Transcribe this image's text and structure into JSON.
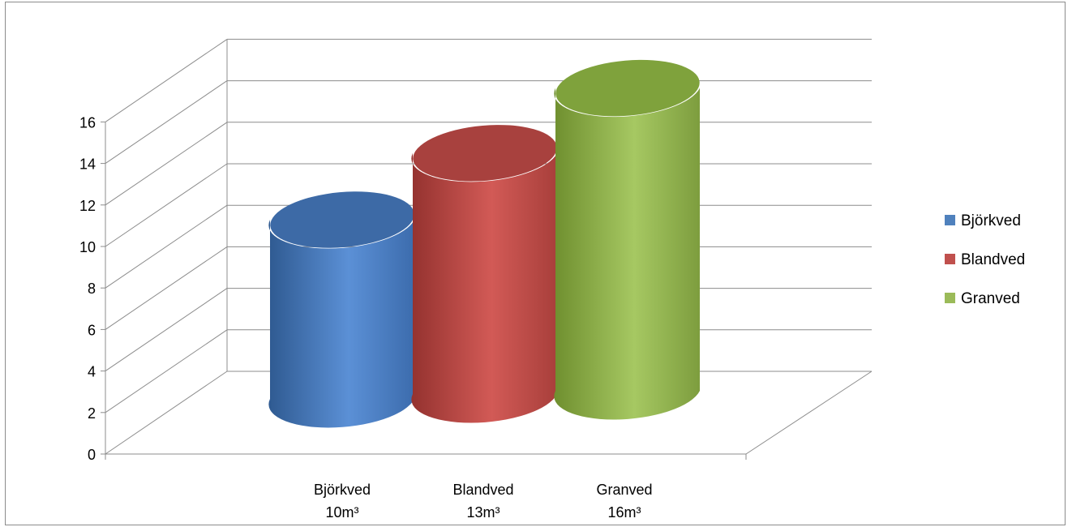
{
  "chart_data": {
    "type": "bar",
    "style": "3d-cylinder",
    "categories": [
      {
        "line1": "Björkved",
        "line2": "10m³"
      },
      {
        "line1": "Blandved",
        "line2": "13m³"
      },
      {
        "line1": "Granved",
        "line2": "16m³"
      }
    ],
    "series": [
      {
        "name": "Björkved",
        "values": [
          10,
          null,
          null
        ],
        "color": "#4f81bd"
      },
      {
        "name": "Blandved",
        "values": [
          null,
          13,
          null
        ],
        "color": "#c0504d"
      },
      {
        "name": "Granved",
        "values": [
          null,
          null,
          16
        ],
        "color": "#9bbb59"
      }
    ],
    "ylim": [
      0,
      16
    ],
    "yticks": [
      "0",
      "2",
      "4",
      "6",
      "8",
      "10",
      "12",
      "14",
      "16"
    ],
    "grid": true,
    "legend_position": "right",
    "title_color": "#ff0000"
  }
}
